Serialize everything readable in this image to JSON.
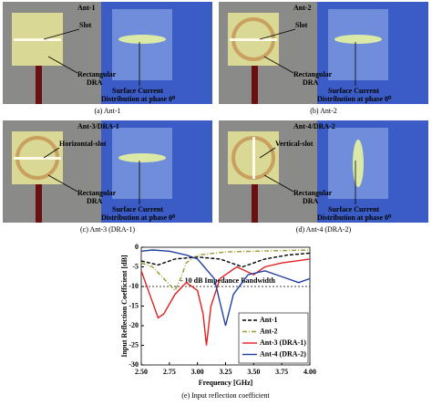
{
  "panels": [
    {
      "title": "Ant-1",
      "slot": "Slot",
      "dra": [
        "Rectangular",
        "DRA"
      ],
      "current": [
        "Surface Current",
        "Distribution at phase 0⁰"
      ],
      "caption": "(a) Ant-1"
    },
    {
      "title": "Ant-2",
      "slot": "Slot",
      "dra": [
        "Rectangular",
        "DRA"
      ],
      "current": [
        "Surface Current",
        "Distribution at phase 0⁰"
      ],
      "caption": "(b) Ant-2"
    },
    {
      "title": "Ant-3/DRA-1",
      "slot": "Horizontal-slot",
      "dra": [
        "Rectangular",
        "DRA"
      ],
      "current": [
        "Surface Current",
        "Distribution at phase 0⁰"
      ],
      "caption": "(c) Ant-3 (DRA-1)"
    },
    {
      "title": "Ant-4/DRA-2",
      "slot": "Vertical-slot",
      "dra": [
        "Rectangular",
        "DRA"
      ],
      "current": [
        "Surface Current",
        "Distribution at phase 0⁰"
      ],
      "caption": "(d) Ant-4 (DRA-2)"
    }
  ],
  "chart_data": {
    "type": "line",
    "caption": "(e) Input reflection coefficient",
    "x_label": "Frequency [GHz]",
    "y_label": "Input Reflection Coefficient [dB]",
    "annotation": "- 10 dB Impedance Bandwidth",
    "threshold": -10,
    "xlim": [
      2.5,
      4.0
    ],
    "ylim": [
      -30,
      0
    ],
    "xticks": [
      {
        "value": 2.5,
        "label": "2.50"
      },
      {
        "value": 2.75,
        "label": "2.75"
      },
      {
        "value": 3.0,
        "label": "3.00"
      },
      {
        "value": 3.25,
        "label": "3.25"
      },
      {
        "value": 3.5,
        "label": "3.50"
      },
      {
        "value": 3.75,
        "label": "3.75"
      },
      {
        "value": 4.0,
        "label": "4.00"
      }
    ],
    "yticks": [
      0,
      -5,
      -10,
      -15,
      -20,
      -25,
      -30
    ],
    "series": [
      {
        "name": "Ant-1",
        "color": "#000000",
        "dash": "4,2",
        "x": [
          2.5,
          2.65,
          2.8,
          3.0,
          3.2,
          3.4,
          3.5,
          3.6,
          3.8,
          4.0
        ],
        "values": [
          -3.5,
          -4.5,
          -3,
          -2.5,
          -3,
          -5,
          -4,
          -3,
          -2,
          -1.5
        ]
      },
      {
        "name": "Ant-2",
        "color": "#9a9a30",
        "dash": "5,2,1,2",
        "x": [
          2.5,
          2.6,
          2.7,
          2.8,
          2.85,
          2.9,
          3.0,
          3.25,
          3.5,
          4.0
        ],
        "values": [
          -4,
          -5,
          -8,
          -11,
          -8,
          -4,
          -2,
          -1.2,
          -1,
          -0.7
        ]
      },
      {
        "name": "Ant-3 (DRA-1)",
        "color": "#e02020",
        "dash": "",
        "x": [
          2.5,
          2.6,
          2.65,
          2.7,
          2.8,
          2.9,
          3.0,
          3.05,
          3.08,
          3.12,
          3.2,
          3.35,
          3.5,
          3.6,
          3.75,
          4.0
        ],
        "values": [
          -6,
          -14,
          -18,
          -17,
          -12,
          -9,
          -11,
          -17,
          -25,
          -15,
          -8,
          -5,
          -7,
          -5,
          -4,
          -3
        ]
      },
      {
        "name": "Ant-4 (DRA-2)",
        "color": "#2040a0",
        "dash": "",
        "x": [
          2.5,
          2.6,
          2.75,
          2.9,
          3.0,
          3.15,
          3.25,
          3.32,
          3.45,
          3.6,
          3.8,
          3.9,
          4.0
        ],
        "values": [
          -1,
          -0.7,
          -1,
          -2,
          -3,
          -8,
          -20,
          -12,
          -7,
          -6,
          -8,
          -9,
          -8
        ]
      }
    ]
  }
}
